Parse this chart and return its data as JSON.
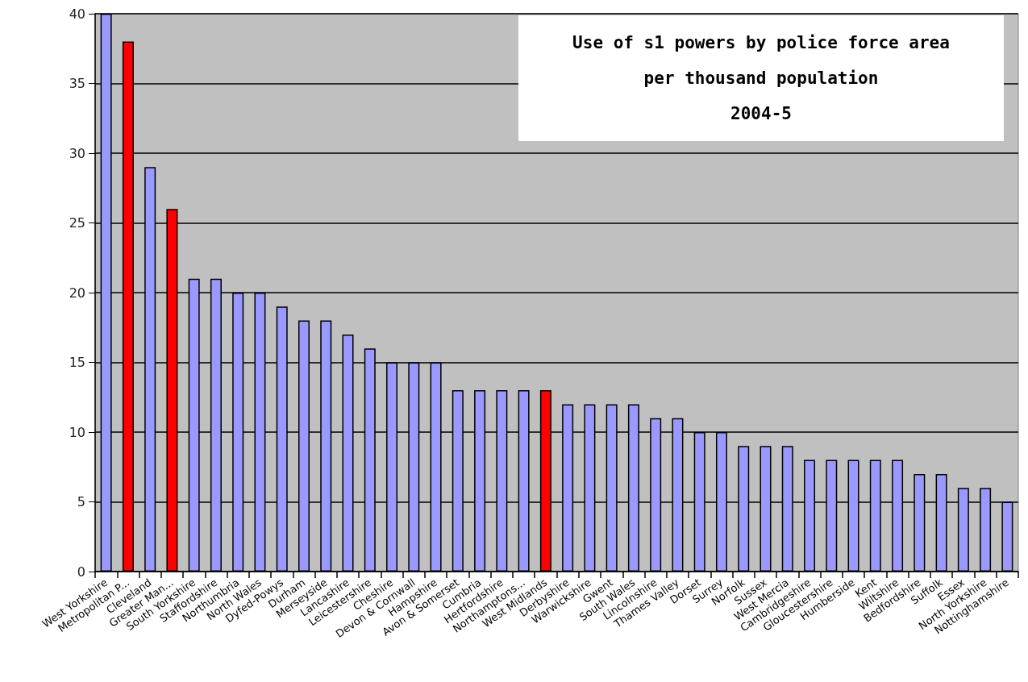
{
  "chart_data": {
    "type": "bar",
    "title": "Use of s1 powers by police force area\nper thousand population\n2004-5",
    "categories": [
      "West Yorkshire",
      "Metropolitan P...",
      "Cleveland",
      "Greater Man...",
      "South Yorkshire",
      "Staffordshire",
      "Northumbria",
      "North Wales",
      "Dyfed-Powys",
      "Durham",
      "Merseyside",
      "Lancashire",
      "Leicestershire",
      "Cheshire",
      "Devon & Cornwall",
      "Hampshire",
      "Avon & Somerset",
      "Cumbria",
      "Hertfordshire",
      "Northamptons...",
      "West Midlands",
      "Derbyshire",
      "Warwickshire",
      "Gwent",
      "South Wales",
      "Lincolnshire",
      "Thames Valley",
      "Dorset",
      "Surrey",
      "Norfolk",
      "Sussex",
      "West Mercia",
      "Cambridgeshire",
      "Gloucestershire",
      "Humberside",
      "Kent",
      "Wiltshire",
      "Bedfordshire",
      "Suffolk",
      "Essex",
      "North Yorkshire",
      "Nottinghamshire"
    ],
    "values": [
      40,
      38,
      29,
      26,
      21,
      21,
      20,
      20,
      19,
      18,
      18,
      17,
      16,
      15,
      15,
      15,
      13,
      13,
      13,
      13,
      13,
      12,
      12,
      12,
      12,
      11,
      11,
      10,
      10,
      9,
      9,
      9,
      8,
      8,
      8,
      8,
      8,
      7,
      7,
      6,
      6,
      5
    ],
    "colors": [
      "#9999ff",
      "#ff0000",
      "#9999ff",
      "#ff0000",
      "#9999ff",
      "#9999ff",
      "#9999ff",
      "#9999ff",
      "#9999ff",
      "#9999ff",
      "#9999ff",
      "#9999ff",
      "#9999ff",
      "#9999ff",
      "#9999ff",
      "#9999ff",
      "#9999ff",
      "#9999ff",
      "#9999ff",
      "#9999ff",
      "#ff0000",
      "#9999ff",
      "#9999ff",
      "#9999ff",
      "#9999ff",
      "#9999ff",
      "#9999ff",
      "#9999ff",
      "#9999ff",
      "#9999ff",
      "#9999ff",
      "#9999ff",
      "#9999ff",
      "#9999ff",
      "#9999ff",
      "#9999ff",
      "#9999ff",
      "#9999ff",
      "#9999ff",
      "#9999ff",
      "#9999ff",
      "#9999ff"
    ],
    "ylim": [
      0,
      40
    ],
    "yticks": [
      0,
      5,
      10,
      15,
      20,
      25,
      30,
      35,
      40
    ],
    "grid": "y"
  }
}
